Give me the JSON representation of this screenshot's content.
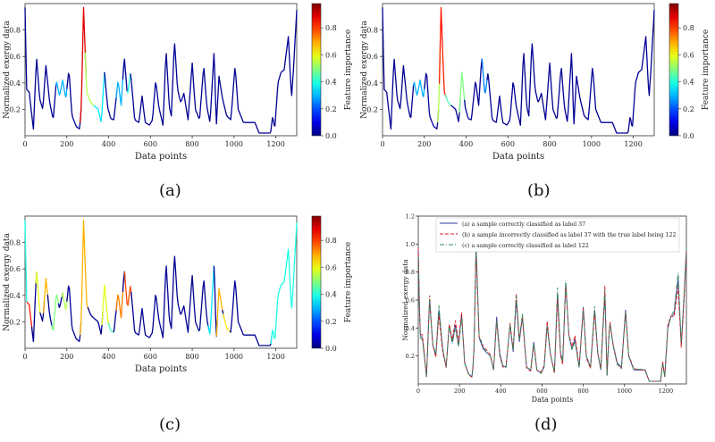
{
  "figure": {
    "captions": [
      "(a)",
      "(b)",
      "(c)",
      "(d)"
    ]
  },
  "chart_data": [
    {
      "panel": "a",
      "type": "line",
      "colormap": "jet",
      "xlabel": "Data points",
      "ylabel": "Normalized exergy data",
      "xlim": [
        0,
        1300
      ],
      "ylim": [
        0,
        1.0
      ],
      "xticks": [
        0,
        200,
        400,
        600,
        800,
        1000,
        1200
      ],
      "yticks": [
        0.2,
        0.4,
        0.6,
        0.8
      ],
      "colorbar": {
        "label": "Feature importance",
        "ticks": [
          0.0,
          0.2,
          0.4,
          0.6,
          0.8
        ],
        "range": [
          0,
          0.98
        ]
      },
      "highlights": [
        {
          "from": 150,
          "to": 200,
          "importance": 0.3
        },
        {
          "from": 268,
          "to": 290,
          "importance": 0.9
        },
        {
          "from": 290,
          "to": 330,
          "importance": 0.55
        },
        {
          "from": 330,
          "to": 380,
          "importance": 0.35
        },
        {
          "from": 440,
          "to": 470,
          "importance": 0.3
        },
        {
          "from": 490,
          "to": 505,
          "importance": 0.4
        }
      ]
    },
    {
      "panel": "b",
      "type": "line",
      "colormap": "jet",
      "xlabel": "Data points",
      "ylabel": "Normalized exergy data",
      "xlim": [
        0,
        1300
      ],
      "ylim": [
        0,
        1.0
      ],
      "xticks": [
        0,
        200,
        400,
        600,
        800,
        1000,
        1200
      ],
      "yticks": [
        0.2,
        0.4,
        0.6,
        0.8
      ],
      "colorbar": {
        "label": "Feature importance",
        "ticks": [
          0.0,
          0.2,
          0.4,
          0.6,
          0.8
        ],
        "range": [
          0,
          0.98
        ]
      },
      "highlights": [
        {
          "from": 150,
          "to": 200,
          "importance": 0.3
        },
        {
          "from": 265,
          "to": 275,
          "importance": 0.55
        },
        {
          "from": 275,
          "to": 300,
          "importance": 0.85
        },
        {
          "from": 300,
          "to": 330,
          "importance": 0.45
        },
        {
          "from": 370,
          "to": 395,
          "importance": 0.5
        },
        {
          "from": 480,
          "to": 500,
          "importance": 0.25
        }
      ]
    },
    {
      "panel": "c",
      "type": "line",
      "colormap": "jet",
      "xlabel": "Data points",
      "ylabel": "Normalized exergy data",
      "xlim": [
        0,
        1300
      ],
      "ylim": [
        0,
        1.0
      ],
      "xticks": [
        0,
        200,
        400,
        600,
        800,
        1000,
        1200
      ],
      "yticks": [
        0.2,
        0.4,
        0.6,
        0.8
      ],
      "colorbar": {
        "label": "Feature importance",
        "ticks": [
          0.0,
          0.2,
          0.4,
          0.6,
          0.8
        ],
        "range": [
          0,
          0.98
        ]
      },
      "highlights": [
        {
          "from": 0,
          "to": 10,
          "importance": 0.4
        },
        {
          "from": 10,
          "to": 35,
          "importance": 0.85
        },
        {
          "from": 55,
          "to": 75,
          "importance": 0.6
        },
        {
          "from": 90,
          "to": 110,
          "importance": 0.7
        },
        {
          "from": 130,
          "to": 160,
          "importance": 0.5
        },
        {
          "from": 180,
          "to": 200,
          "importance": 0.55
        },
        {
          "from": 265,
          "to": 300,
          "importance": 0.7
        },
        {
          "from": 370,
          "to": 400,
          "importance": 0.6
        },
        {
          "from": 400,
          "to": 425,
          "importance": 0.45
        },
        {
          "from": 440,
          "to": 470,
          "importance": 0.75
        },
        {
          "from": 480,
          "to": 510,
          "importance": 0.8
        },
        {
          "from": 880,
          "to": 905,
          "importance": 0.35
        },
        {
          "from": 920,
          "to": 945,
          "importance": 0.7
        },
        {
          "from": 950,
          "to": 980,
          "importance": 0.65
        },
        {
          "from": 1180,
          "to": 1300,
          "importance": 0.4
        }
      ]
    },
    {
      "panel": "d",
      "type": "line",
      "xlabel": "Data points",
      "ylabel": "Normalized exergy data",
      "xlim": [
        0,
        1300
      ],
      "ylim": [
        0,
        1.2
      ],
      "xticks": [
        0,
        200,
        400,
        600,
        800,
        1000,
        1200
      ],
      "yticks": [
        0.2,
        0.4,
        0.6,
        0.8,
        1.0,
        1.2
      ],
      "legend": "top-right",
      "series": [
        {
          "name": "(a) a sample correctly classified as label 37",
          "color": "#2e3a9c",
          "dash": "solid"
        },
        {
          "name": "(b) a sample incorrectly classified as label 37 with the true label being 122",
          "color": "#e31a1c",
          "dash": "dashed"
        },
        {
          "name": "(c) a sample correctly classified as label 122",
          "color": "#2e8b57",
          "dash": "dashdot"
        }
      ]
    }
  ],
  "signal_knots": [
    [
      0,
      0.97
    ],
    [
      8,
      0.35
    ],
    [
      20,
      0.33
    ],
    [
      40,
      0.05
    ],
    [
      55,
      0.6
    ],
    [
      70,
      0.28
    ],
    [
      85,
      0.2
    ],
    [
      100,
      0.53
    ],
    [
      118,
      0.25
    ],
    [
      135,
      0.12
    ],
    [
      150,
      0.42
    ],
    [
      165,
      0.3
    ],
    [
      180,
      0.42
    ],
    [
      195,
      0.28
    ],
    [
      210,
      0.5
    ],
    [
      225,
      0.15
    ],
    [
      245,
      0.07
    ],
    [
      262,
      0.05
    ],
    [
      270,
      0.25
    ],
    [
      280,
      0.97
    ],
    [
      295,
      0.33
    ],
    [
      315,
      0.25
    ],
    [
      335,
      0.22
    ],
    [
      350,
      0.2
    ],
    [
      365,
      0.1
    ],
    [
      380,
      0.48
    ],
    [
      395,
      0.22
    ],
    [
      410,
      0.13
    ],
    [
      425,
      0.12
    ],
    [
      445,
      0.42
    ],
    [
      460,
      0.23
    ],
    [
      475,
      0.6
    ],
    [
      490,
      0.3
    ],
    [
      505,
      0.48
    ],
    [
      525,
      0.12
    ],
    [
      545,
      0.1
    ],
    [
      560,
      0.3
    ],
    [
      575,
      0.1
    ],
    [
      595,
      0.08
    ],
    [
      610,
      0.12
    ],
    [
      625,
      0.42
    ],
    [
      640,
      0.22
    ],
    [
      660,
      0.08
    ],
    [
      675,
      0.65
    ],
    [
      690,
      0.22
    ],
    [
      700,
      0.15
    ],
    [
      715,
      0.72
    ],
    [
      730,
      0.35
    ],
    [
      745,
      0.25
    ],
    [
      760,
      0.32
    ],
    [
      780,
      0.12
    ],
    [
      800,
      0.55
    ],
    [
      815,
      0.2
    ],
    [
      835,
      0.12
    ],
    [
      855,
      0.53
    ],
    [
      870,
      0.22
    ],
    [
      885,
      0.1
    ],
    [
      905,
      0.65
    ],
    [
      915,
      0.06
    ],
    [
      928,
      0.45
    ],
    [
      945,
      0.28
    ],
    [
      965,
      0.15
    ],
    [
      985,
      0.12
    ],
    [
      1005,
      0.53
    ],
    [
      1020,
      0.2
    ],
    [
      1045,
      0.1
    ],
    [
      1100,
      0.1
    ],
    [
      1120,
      0.02
    ],
    [
      1175,
      0.02
    ],
    [
      1185,
      0.15
    ],
    [
      1195,
      0.05
    ],
    [
      1210,
      0.4
    ],
    [
      1225,
      0.48
    ],
    [
      1240,
      0.5
    ],
    [
      1260,
      0.75
    ],
    [
      1275,
      0.28
    ],
    [
      1285,
      0.52
    ],
    [
      1300,
      0.95
    ]
  ]
}
